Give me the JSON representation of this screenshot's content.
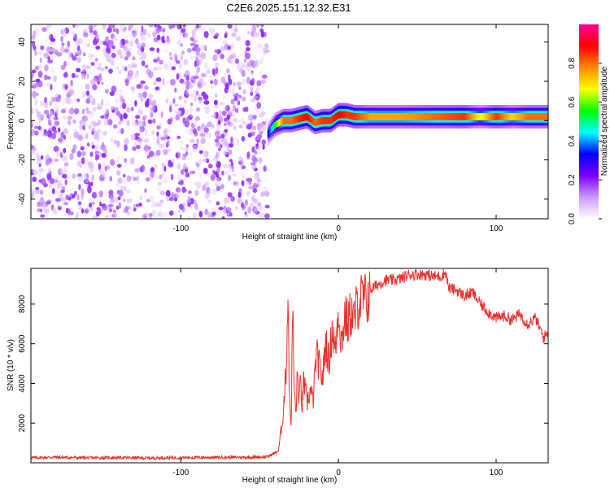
{
  "title": "C2E6.2025.151.12.32.E31",
  "chart_data": [
    {
      "type": "heatmap",
      "xlabel": "Height of straight line (km)",
      "ylabel": "Frequency (Hz)",
      "xlim": [
        -195,
        133
      ],
      "ylim": [
        -50,
        49
      ],
      "xticks": [
        -100,
        0,
        100
      ],
      "xtick_labels": [
        "-100",
        "0",
        "100"
      ],
      "yticks": [
        -40,
        -20,
        0,
        20,
        40
      ],
      "ytick_labels": [
        "-40",
        "-20",
        "0",
        "20",
        "40"
      ],
      "colorbar": {
        "label": "Normalized spectral amplitude",
        "range": [
          0,
          1
        ],
        "ticks": [
          0.0,
          0.2,
          0.4,
          0.6,
          0.8
        ],
        "tick_labels": [
          "0.0",
          "0.2",
          "0.4",
          "0.6",
          "0.8"
        ],
        "colors": [
          "#ffffff",
          "#cc99ff",
          "#7a00ff",
          "#0000ff",
          "#00ffff",
          "#00ff00",
          "#ffff00",
          "#ff8800",
          "#ff0000",
          "#ff0099"
        ]
      },
      "noise_region": {
        "x_range": [
          -195,
          -45
        ],
        "freq_range": [
          -50,
          49
        ],
        "amplitude_range": [
          0.0,
          0.2
        ]
      },
      "signal_track": {
        "x": [
          -45,
          -40,
          -35,
          -30,
          -25,
          -20,
          -15,
          -10,
          -5,
          0,
          5,
          10,
          20,
          40,
          60,
          80,
          90,
          100,
          110,
          120,
          133
        ],
        "freq_hz": [
          -7,
          -2,
          0,
          0,
          1,
          2,
          -1,
          0,
          0,
          3,
          3,
          2,
          2,
          2,
          2,
          2,
          2,
          2,
          2,
          2,
          2
        ],
        "peak_amplitude": [
          0.3,
          0.55,
          0.8,
          0.8,
          0.85,
          0.9,
          0.8,
          0.85,
          0.85,
          0.9,
          0.85,
          0.85,
          0.75,
          0.75,
          0.8,
          0.85,
          0.65,
          0.85,
          0.7,
          0.8,
          0.8
        ]
      },
      "grid": false
    },
    {
      "type": "line",
      "xlabel": "Height of straight line (km)",
      "ylabel": "SNR (10 * v/v)",
      "xlim": [
        -195,
        133
      ],
      "ylim": [
        0,
        9800
      ],
      "xticks": [
        -100,
        0,
        100
      ],
      "xtick_labels": [
        "-100",
        "0",
        "100"
      ],
      "yticks": [
        2000,
        4000,
        6000,
        8000
      ],
      "ytick_labels": [
        "2000",
        "4000",
        "6000",
        "8000"
      ],
      "series": [
        {
          "color": "#e8302b",
          "x": [
            -195,
            -180,
            -160,
            -140,
            -120,
            -100,
            -80,
            -60,
            -45,
            -38,
            -35,
            -33,
            -32,
            -31,
            -30,
            -29,
            -28,
            -27,
            -26,
            -25,
            -24,
            -23,
            -22,
            -20,
            -18,
            -16,
            -14,
            -12,
            -10,
            -8,
            -6,
            -4,
            -2,
            0,
            2,
            4,
            6,
            8,
            10,
            12,
            15,
            18,
            20,
            25,
            30,
            35,
            40,
            45,
            50,
            55,
            60,
            65,
            68,
            70,
            75,
            80,
            85,
            90,
            95,
            100,
            105,
            110,
            115,
            120,
            125,
            130,
            133
          ],
          "y": [
            250,
            280,
            250,
            260,
            240,
            260,
            270,
            280,
            300,
            600,
            2500,
            5000,
            8700,
            3000,
            2000,
            7800,
            3500,
            2500,
            4500,
            3200,
            4000,
            2800,
            4200,
            3000,
            3600,
            3200,
            5500,
            4800,
            4200,
            6200,
            5000,
            6800,
            5600,
            7800,
            6000,
            7400,
            7000,
            7600,
            7200,
            8000,
            8300,
            8200,
            8700,
            9000,
            9200,
            9200,
            9300,
            9500,
            9500,
            9500,
            9400,
            9400,
            9600,
            8800,
            8700,
            8400,
            8600,
            8000,
            7600,
            7300,
            7400,
            7200,
            7500,
            7000,
            7300,
            6300,
            6600
          ]
        }
      ],
      "grid": false
    }
  ]
}
